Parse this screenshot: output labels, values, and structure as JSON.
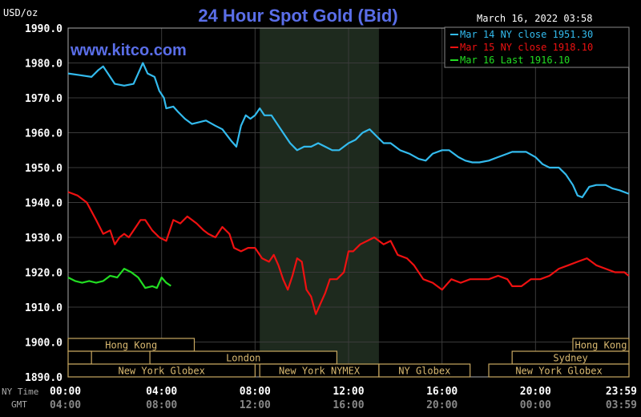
{
  "header": {
    "title": "24 Hour Spot Gold (Bid)",
    "unit": "USD/oz",
    "timestamp": "March 16, 2022 03:58",
    "watermark": "www.kitco.com"
  },
  "legend": [
    {
      "label": "Mar 14 NY close 1951.30",
      "color": "#33bbee"
    },
    {
      "label": "Mar 15 NY close 1918.10",
      "color": "#ee1111"
    },
    {
      "label": "Mar 16 Last 1916.10",
      "color": "#22dd22"
    }
  ],
  "time_axis": {
    "row1_label": "NY Time",
    "row2_label": "GMT",
    "ny_ticks": [
      "00:00",
      "04:00",
      "08:00",
      "12:00",
      "16:00",
      "20:00",
      "23:59"
    ],
    "gmt_ticks": [
      "04:00",
      "08:00",
      "12:00",
      "16:00",
      "20:00",
      "00:00",
      "03:59"
    ]
  },
  "sessions": {
    "row1": [
      {
        "label": "Hong Kong",
        "start": 0,
        "end": 5.4
      },
      {
        "label": "Hong Kong",
        "start": 21.6,
        "end": 24
      }
    ],
    "row2": [
      {
        "label": "",
        "start": 0,
        "end": 1.0
      },
      {
        "label": "London",
        "start": 3.5,
        "end": 11.5
      },
      {
        "label": "Sydney",
        "start": 19.0,
        "end": 24
      }
    ],
    "row3": [
      {
        "label": "New York Globex",
        "start": 0,
        "end": 8.0
      },
      {
        "label": "New York NYMEX",
        "start": 8.2,
        "end": 13.3
      },
      {
        "label": "NY Globex",
        "start": 13.3,
        "end": 17.2
      },
      {
        "label": "New York Globex",
        "start": 18.0,
        "end": 24
      }
    ]
  },
  "chart_data": {
    "type": "line",
    "title": "24 Hour Spot Gold (Bid)",
    "ylabel": "USD/oz",
    "ylim": [
      1890,
      1990
    ],
    "xlim": [
      0,
      24
    ],
    "yticks": [
      "1890.0",
      "1900.0",
      "1910.0",
      "1920.0",
      "1930.0",
      "1940.0",
      "1950.0",
      "1960.0",
      "1970.0",
      "1980.0",
      "1990.0"
    ],
    "x_unit": "hours NY time",
    "highlight_band": [
      8.2,
      13.3
    ],
    "grid": true,
    "series": [
      {
        "name": "Mar 14 NY close 1951.30",
        "color": "#33bbee",
        "x": [
          0,
          0.5,
          1.0,
          1.3,
          1.5,
          1.8,
          2.0,
          2.4,
          2.8,
          3.0,
          3.2,
          3.4,
          3.7,
          3.9,
          4.1,
          4.2,
          4.5,
          4.7,
          5.0,
          5.3,
          5.6,
          5.9,
          6.3,
          6.6,
          7.0,
          7.2,
          7.4,
          7.6,
          7.8,
          8.0,
          8.2,
          8.4,
          8.7,
          9.0,
          9.2,
          9.5,
          9.8,
          10.1,
          10.4,
          10.7,
          11.0,
          11.3,
          11.6,
          12.0,
          12.3,
          12.6,
          12.9,
          13.2,
          13.5,
          13.8,
          14.2,
          14.6,
          15.0,
          15.3,
          15.6,
          16.0,
          16.3,
          16.7,
          17.0,
          17.3,
          17.6,
          18.0,
          18.4,
          18.8,
          19.0,
          19.3,
          19.6,
          20.0,
          20.3,
          20.6,
          21.0,
          21.3,
          21.6,
          21.8,
          22.0,
          22.3,
          22.6,
          22.8,
          23.0,
          23.3,
          23.6,
          23.99
        ],
        "values": [
          1977,
          1976.5,
          1976,
          1978,
          1979,
          1976,
          1974,
          1973.5,
          1974,
          1977,
          1980,
          1977,
          1976,
          1972,
          1970,
          1967,
          1967.5,
          1966,
          1964,
          1962.5,
          1963,
          1963.5,
          1962,
          1961,
          1957.5,
          1956,
          1962,
          1965,
          1964,
          1965,
          1967,
          1965,
          1965,
          1962,
          1960,
          1957,
          1955,
          1956,
          1956,
          1957,
          1956,
          1955,
          1955,
          1957,
          1958,
          1960,
          1961,
          1959,
          1957,
          1957,
          1955,
          1954,
          1952.5,
          1952,
          1954,
          1955,
          1955,
          1953,
          1952,
          1951.5,
          1951.5,
          1952,
          1953,
          1954,
          1954.5,
          1954.5,
          1954.5,
          1953,
          1951,
          1950,
          1950,
          1948,
          1945,
          1942,
          1941.5,
          1944.5,
          1945,
          1945,
          1945,
          1944,
          1943.5,
          1942.5
        ]
      },
      {
        "name": "Mar 15 NY close 1918.10",
        "color": "#ee1111",
        "x": [
          0,
          0.4,
          0.8,
          1.2,
          1.5,
          1.8,
          2.0,
          2.2,
          2.4,
          2.6,
          2.9,
          3.1,
          3.3,
          3.6,
          3.9,
          4.2,
          4.5,
          4.8,
          5.1,
          5.5,
          5.8,
          6.0,
          6.3,
          6.6,
          6.9,
          7.1,
          7.4,
          7.7,
          8.0,
          8.3,
          8.6,
          8.8,
          9.0,
          9.2,
          9.4,
          9.6,
          9.8,
          10.0,
          10.2,
          10.4,
          10.6,
          10.8,
          11.0,
          11.2,
          11.5,
          11.8,
          12.0,
          12.2,
          12.5,
          12.8,
          13.1,
          13.5,
          13.8,
          14.1,
          14.5,
          14.8,
          15.2,
          15.6,
          16.0,
          16.4,
          16.8,
          17.2,
          17.6,
          18.0,
          18.4,
          18.8,
          19.0,
          19.4,
          19.8,
          20.2,
          20.6,
          21.0,
          21.4,
          21.8,
          22.2,
          22.6,
          23.0,
          23.4,
          23.8,
          23.99
        ],
        "values": [
          1943,
          1942,
          1940,
          1935,
          1931,
          1932,
          1928,
          1930,
          1931,
          1930,
          1933,
          1935,
          1935,
          1932,
          1930,
          1929,
          1935,
          1934,
          1936,
          1934,
          1932,
          1931,
          1930,
          1933,
          1931,
          1927,
          1926,
          1927,
          1927,
          1924,
          1923,
          1925,
          1922,
          1918,
          1915,
          1919,
          1924,
          1923,
          1915,
          1913,
          1908,
          1911,
          1914,
          1918,
          1918,
          1920,
          1926,
          1926,
          1928,
          1929,
          1930,
          1928,
          1929,
          1925,
          1924,
          1922,
          1918,
          1917,
          1915,
          1918,
          1917,
          1918,
          1918,
          1918,
          1919,
          1918,
          1916,
          1916,
          1918,
          1918,
          1919,
          1921,
          1922,
          1923,
          1924,
          1922,
          1921,
          1920,
          1920,
          1919
        ]
      },
      {
        "name": "Mar 16 Last 1916.10",
        "color": "#22dd22",
        "x": [
          0,
          0.3,
          0.6,
          0.9,
          1.2,
          1.5,
          1.8,
          2.1,
          2.4,
          2.7,
          3.0,
          3.3,
          3.6,
          3.8,
          4.0,
          4.2,
          4.4
        ],
        "values": [
          1918.5,
          1917.5,
          1917,
          1917.5,
          1917,
          1917.5,
          1919,
          1918.5,
          1921,
          1920,
          1918.5,
          1915.5,
          1916,
          1915.5,
          1918.5,
          1917,
          1916.1
        ]
      }
    ]
  }
}
